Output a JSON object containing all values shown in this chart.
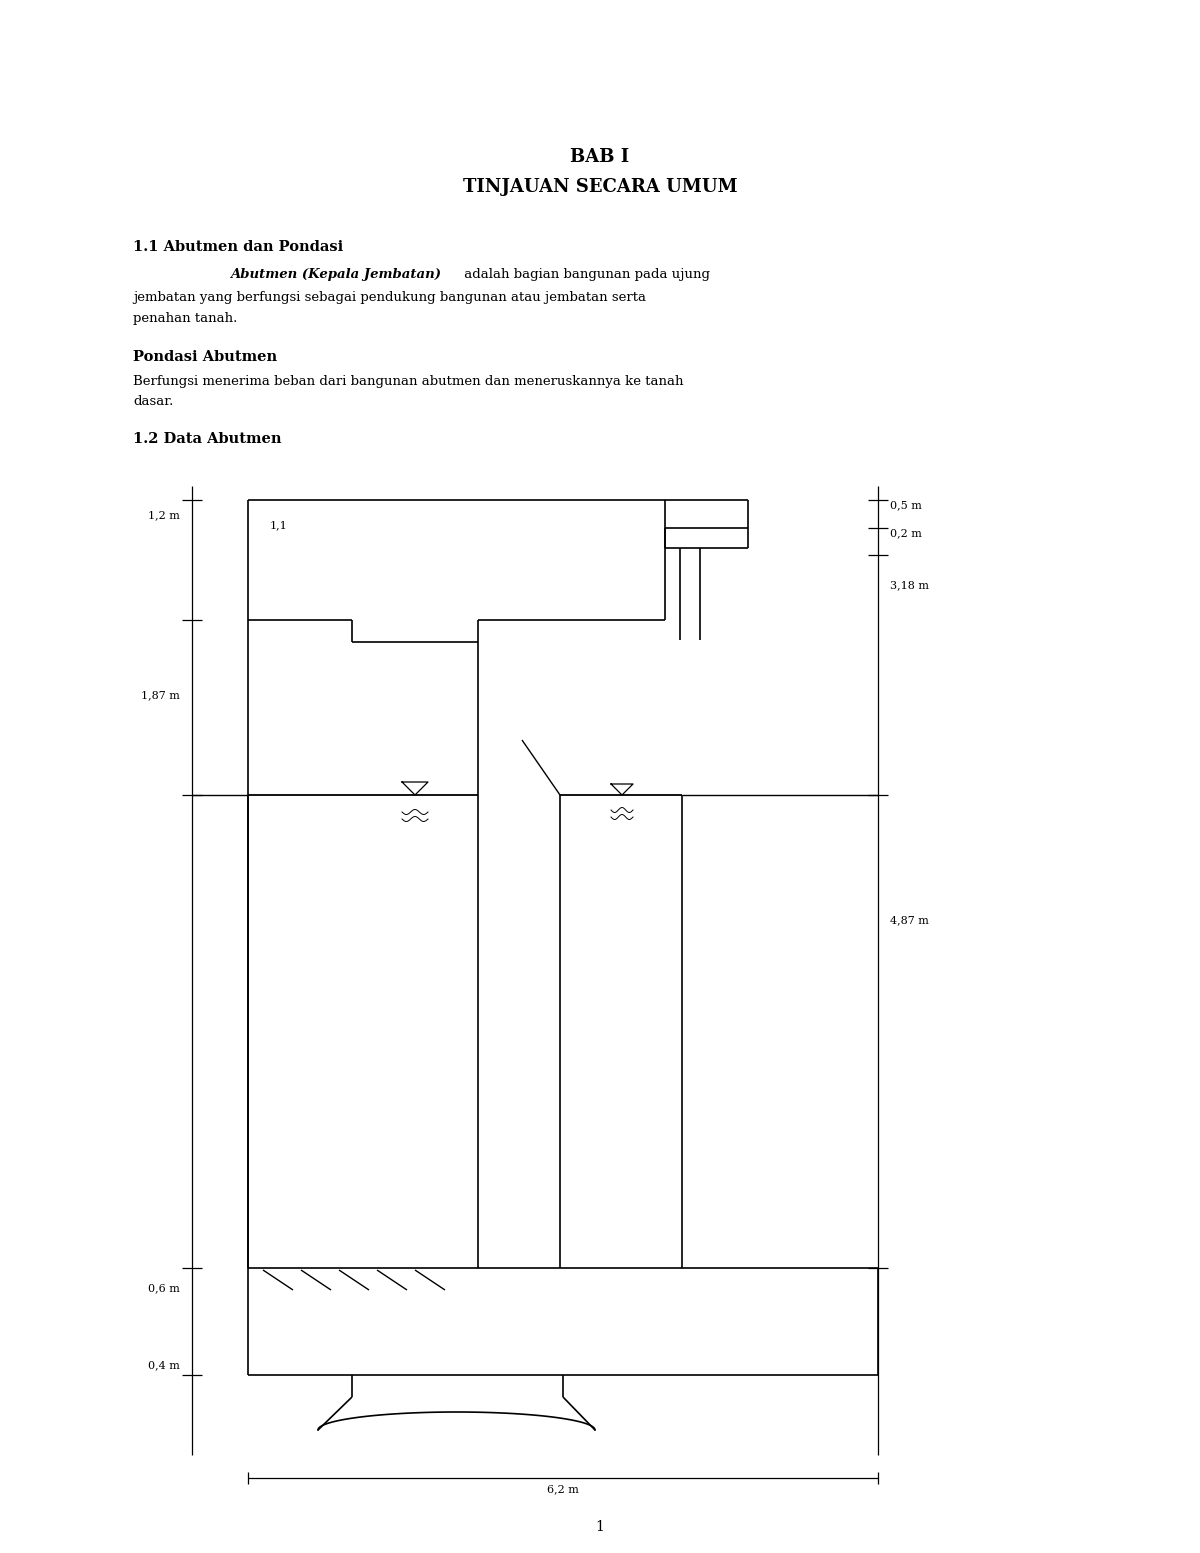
{
  "page_title1": "BAB I",
  "page_title2": "TINJAUAN SECARA UMUM",
  "section1_title": "1.1 Abutmen dan Pondasi",
  "section1_para1_bold": "Abutmen (Kepala Jembatan)",
  "section2_title": "Pondasi Abutmen",
  "section3_title": "1.2 Data Abutmen",
  "dim_05": "0,5 m",
  "dim_02": "0,2 m",
  "dim_318": "3,18 m",
  "dim_487": "4,87 m",
  "dim_12": "1,2 m",
  "dim_11": "1,1",
  "dim_187": "1,87 m",
  "dim_06": "0,6 m",
  "dim_04": "0,4 m",
  "dim_62": "6,2 m",
  "page_number": "1",
  "bg_color": "#ffffff",
  "line_color": "#000000",
  "text_color": "#000000",
  "font_size_title": 13,
  "font_size_body": 9.5,
  "font_size_section": 10.5,
  "font_size_dim": 8.0
}
